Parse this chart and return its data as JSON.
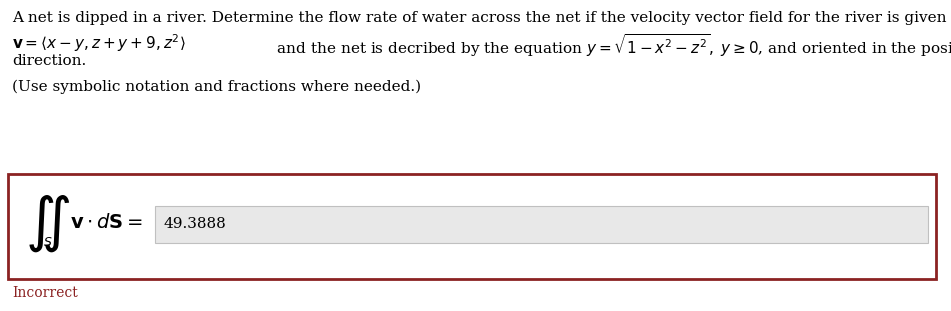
{
  "line1": "A net is dipped in a river. Determine the flow rate of water across the net if the velocity vector field for the river is given by",
  "line2a_text": "v = ⟨x − y, z + y + 9, z²⟩ and the net is decribed by the equation ",
  "line2b_math": "y = \\sqrt{1 - x^2 - z^2},\\; y \\geq 0",
  "line2c_text": ", and oriented in the positive y-",
  "line3": "direction.",
  "line4": "(Use symbolic notation and fractions where needed.)",
  "integral_math": "\\iint_S",
  "vdS_math": "\\mathbf{v} \\cdot d\\mathbf{S} =",
  "answer": "49.3888",
  "incorrect_label": "Incorrect",
  "box_border_color": "#8b2222",
  "incorrect_color": "#8b2222",
  "input_box_color": "#e8e8e8",
  "input_box_border": "#c0c0c0",
  "text_color": "#000000",
  "background_color": "#ffffff",
  "font_size_body": 11.0,
  "font_size_integral": 26,
  "font_size_vds": 13,
  "font_size_answer": 11.0,
  "font_size_incorrect": 10,
  "fig_width": 9.51,
  "fig_height": 3.11,
  "dpi": 100
}
